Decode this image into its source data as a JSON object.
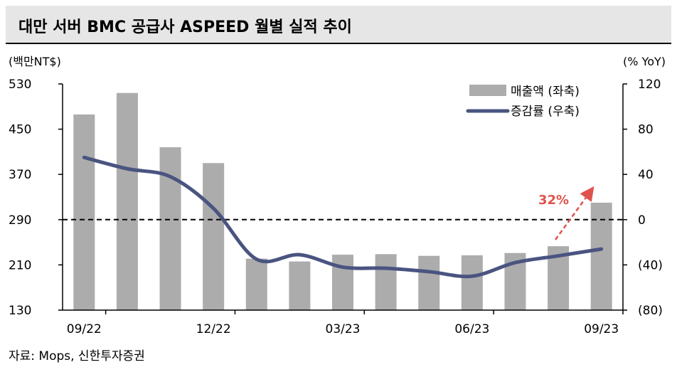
{
  "header": {
    "title": "대만 서버 BMC 공급사 ASPEED 월별 실적 추이"
  },
  "footer": {
    "source": "자료: Mops, 신한투자증권"
  },
  "chart_data": {
    "type": "bar+line",
    "left_unit": "(백만NT$)",
    "right_unit": "(% YoY)",
    "left_ticks": [
      "530",
      "450",
      "370",
      "290",
      "210",
      "130"
    ],
    "right_ticks": [
      "120",
      "80",
      "40",
      "0",
      "(40)",
      "(80)"
    ],
    "left_ylim": [
      130,
      530
    ],
    "right_ylim": [
      -80,
      120
    ],
    "months": [
      "09/22",
      "10/22",
      "11/22",
      "12/22",
      "01/23",
      "02/23",
      "03/23",
      "04/23",
      "05/23",
      "06/23",
      "07/23",
      "08/23",
      "09/23"
    ],
    "x_tick_labels": [
      "09/22",
      "12/22",
      "03/23",
      "06/23",
      "09/23"
    ],
    "x_tick_index": [
      0,
      3,
      6,
      9,
      12
    ],
    "series": [
      {
        "name": "매출액 (좌축)",
        "type": "bar",
        "axis": "left",
        "color": "#acacac",
        "values": [
          476,
          514,
          418,
          390,
          221,
          216,
          228,
          229,
          226,
          227,
          231,
          243,
          320
        ]
      },
      {
        "name": "증감률 (우축)",
        "type": "line",
        "axis": "right",
        "color": "#4a5480",
        "values": [
          55,
          45,
          38,
          10,
          -35,
          -31,
          -42,
          -43,
          -46,
          -50,
          -38,
          -32,
          -26
        ]
      }
    ],
    "annotation": {
      "text": "32%",
      "color": "#e0524d"
    },
    "reference_line": {
      "axis": "right",
      "value": 0,
      "style": "dashed"
    }
  }
}
